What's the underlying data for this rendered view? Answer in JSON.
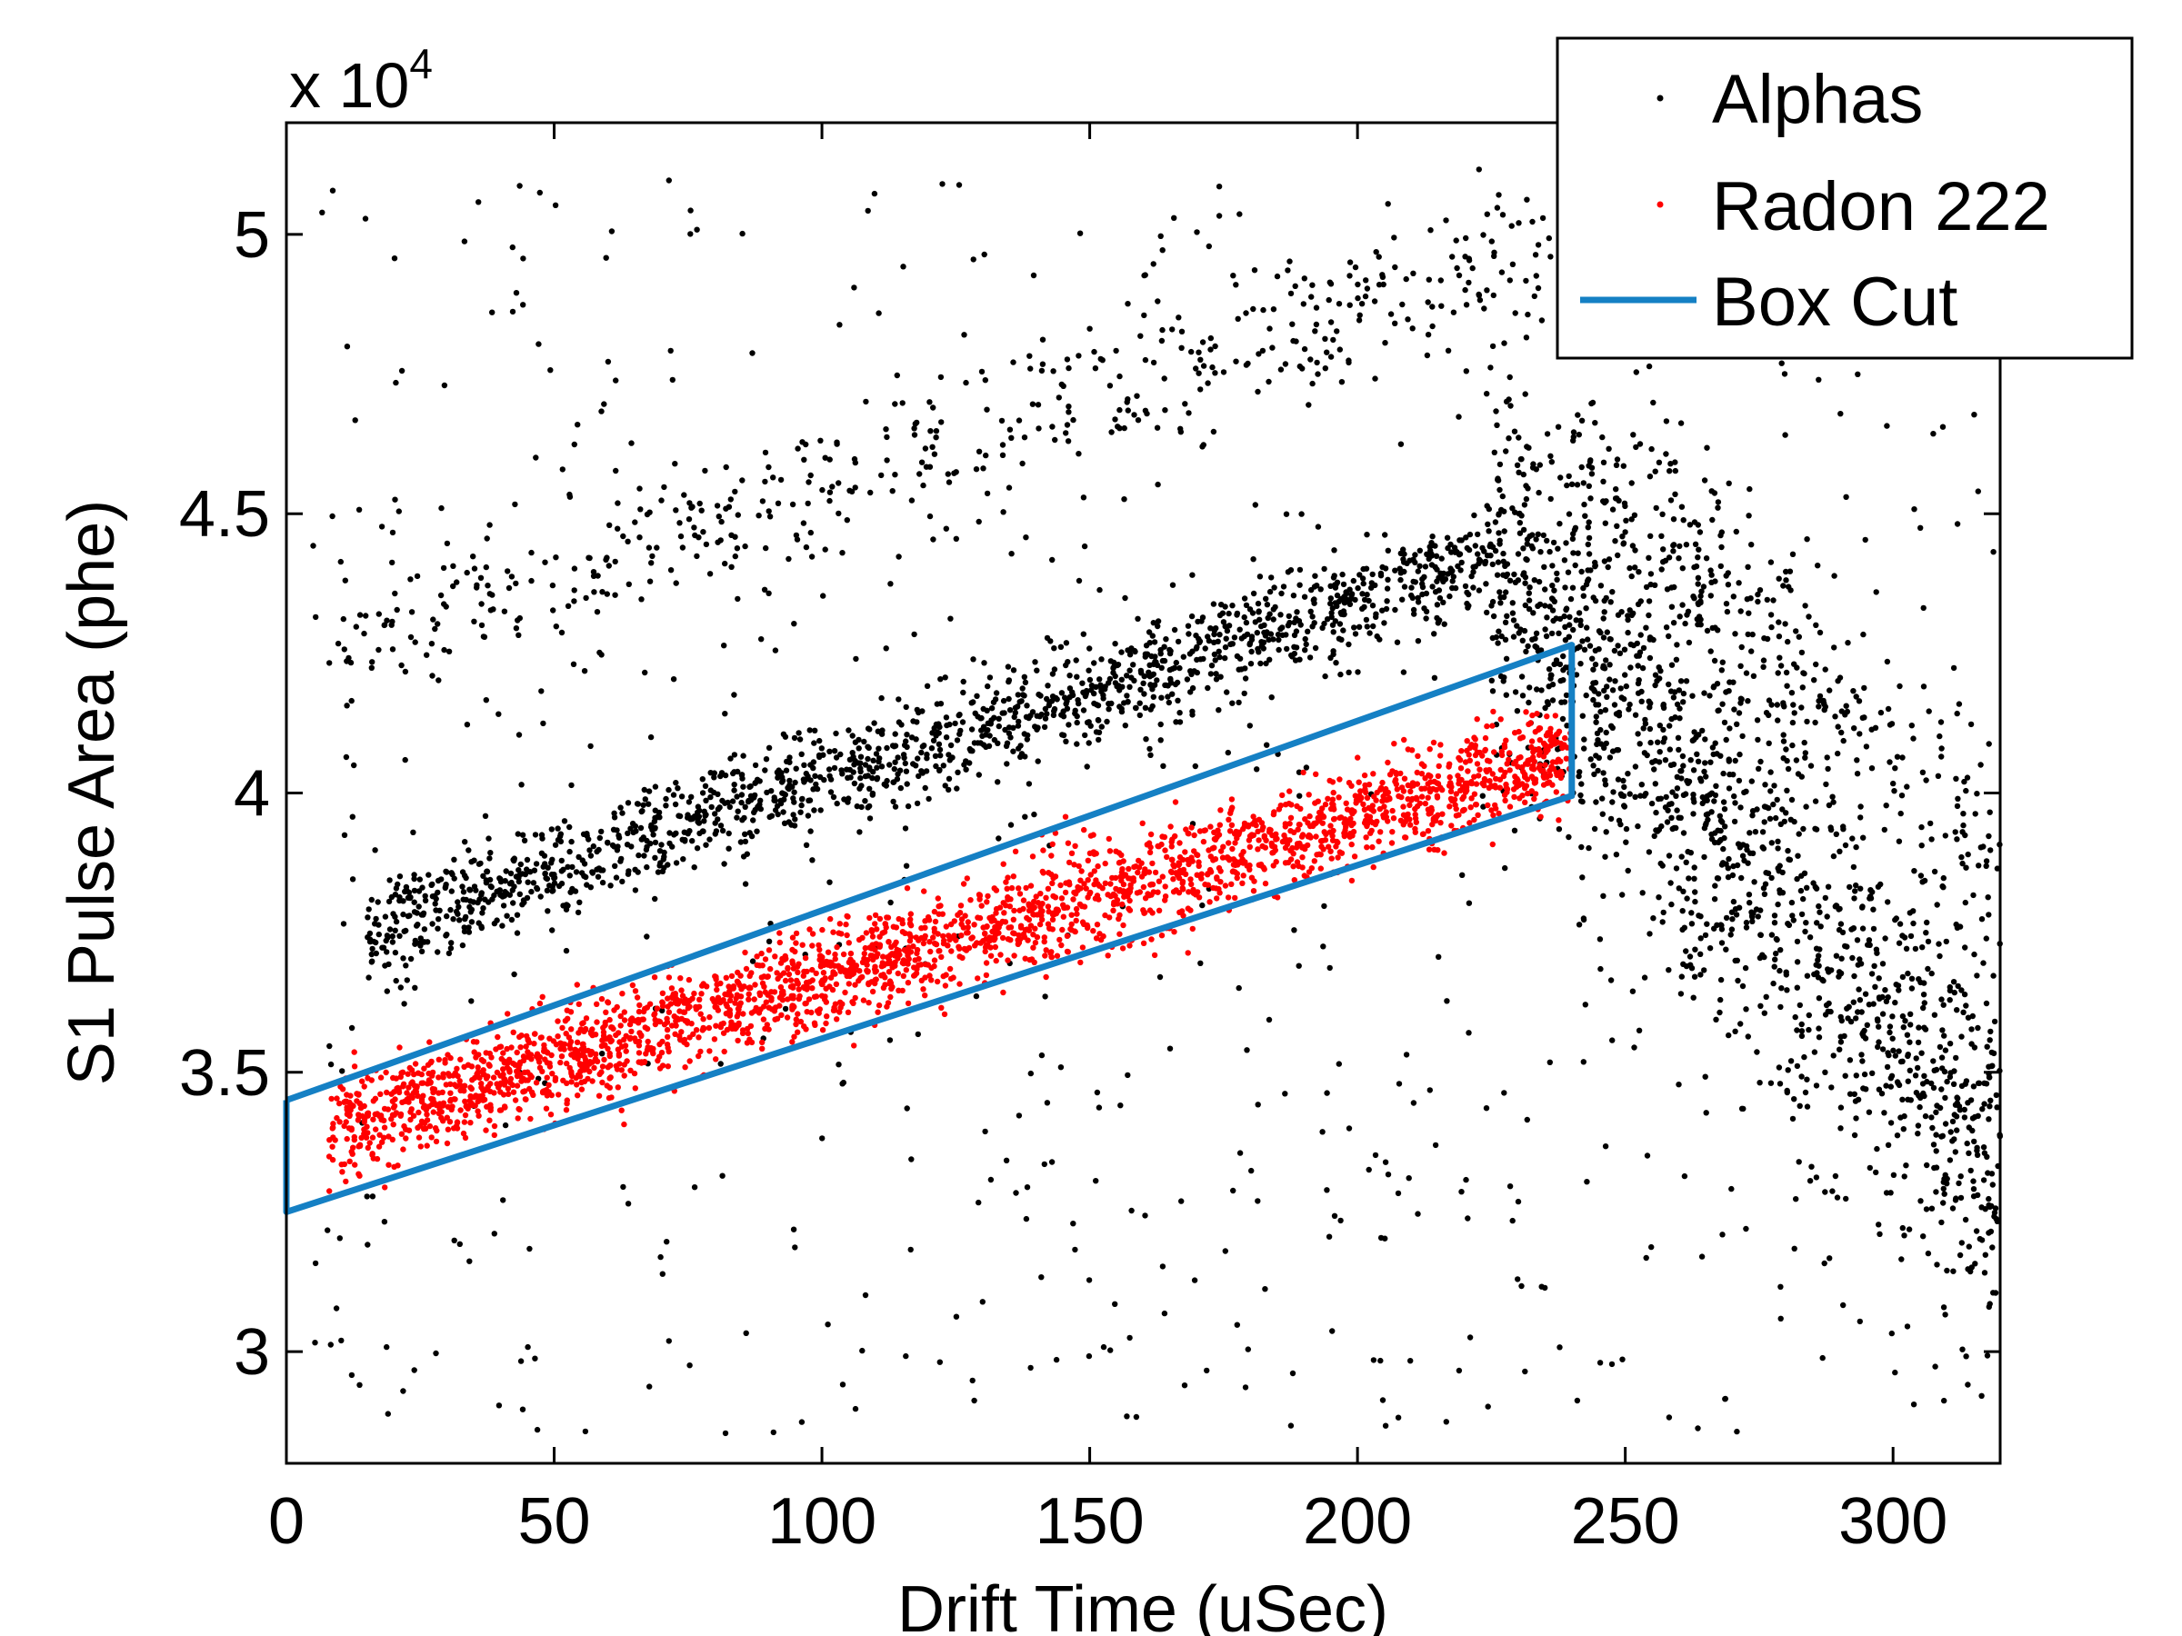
{
  "chart_data": {
    "type": "scatter",
    "xlabel": "Drift Time (uSec)",
    "ylabel": "S1 Pulse Area (phe)",
    "y_multiplier": {
      "base": "x 10",
      "exponent": "4"
    },
    "xlim": [
      0,
      320
    ],
    "ylim": [
      2.8,
      5.2
    ],
    "xticks": [
      0,
      50,
      100,
      150,
      200,
      250,
      300
    ],
    "xtick_labels": [
      "0",
      "50",
      "100",
      "150",
      "200",
      "250",
      "300"
    ],
    "yticks": [
      3.0,
      3.5,
      4.0,
      4.5,
      5.0
    ],
    "ytick_labels": [
      "3",
      "3.5",
      "4",
      "4.5",
      "5"
    ],
    "grid": false,
    "legend_placement": "top-right",
    "legend": [
      {
        "label": "Alphas",
        "marker": "dot",
        "color": "#000000"
      },
      {
        "label": "Radon 222",
        "marker": "dot",
        "color": "#ff0000"
      },
      {
        "label": "Box Cut",
        "marker": "line",
        "color": "#1580c4"
      }
    ],
    "series": [
      {
        "name": "Alphas",
        "color": "#000000",
        "bands": [
          {
            "x_range": [
              10,
              240
            ],
            "y_start": 4.25,
            "y_end": 5.0,
            "spread": 0.06,
            "count": 450
          },
          {
            "x_range": [
              15,
              225
            ],
            "y_start": 3.75,
            "y_end": 4.42,
            "spread": 0.045,
            "count": 1500
          },
          {
            "x_range": [
              225,
              320
            ],
            "y_start": 4.42,
            "y_end": 3.35,
            "spread": 0.18,
            "count": 1400
          },
          {
            "x_range": [
              240,
              320
            ],
            "y_start": 4.6,
            "y_end": 3.9,
            "spread": 0.1,
            "count": 300
          }
        ],
        "scatter_range": {
          "x_range": [
            5,
            320
          ],
          "y_range": [
            2.85,
            5.1
          ],
          "count": 700
        }
      },
      {
        "name": "Radon 222",
        "color": "#ff0000",
        "bands": [
          {
            "x_range": [
              8,
              240
            ],
            "y_start": 3.4,
            "y_end": 4.07,
            "spread": 0.045,
            "count": 2600
          }
        ]
      },
      {
        "name": "Box Cut",
        "color": "#1580c4",
        "polygon": [
          [
            0,
            3.45
          ],
          [
            240,
            4.265
          ],
          [
            240,
            3.995
          ],
          [
            0,
            3.25
          ]
        ]
      }
    ]
  }
}
